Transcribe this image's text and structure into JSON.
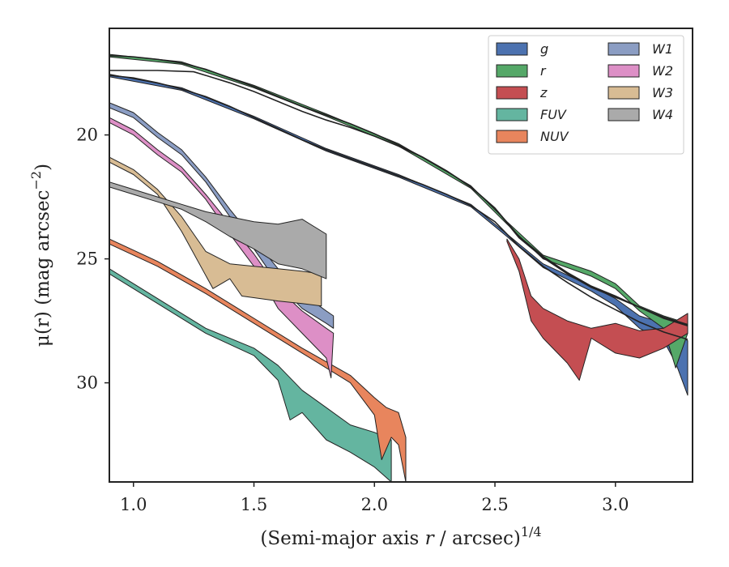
{
  "chart_data": {
    "type": "area",
    "xlabel": "(Semi-major axis r / arcsec)",
    "xlabel_italic_part": "r",
    "xlabel_superscript": "1/4",
    "ylabel": "μ(r) (mag arcsec",
    "ylabel_superscript": "−2",
    "ylabel_close": ")",
    "xlim": [
      0.9,
      3.32
    ],
    "ylim": [
      34.0,
      15.7
    ],
    "y_inverted": true,
    "xticks": [
      1.0,
      1.5,
      2.0,
      2.5,
      3.0
    ],
    "xtick_labels": [
      "1.0",
      "1.5",
      "2.0",
      "2.5",
      "3.0"
    ],
    "yticks": [
      20,
      25,
      30
    ],
    "ytick_labels": [
      "20",
      "25",
      "30"
    ],
    "legend_position": "top-right",
    "legend_columns": 2,
    "model_curves": [
      {
        "points": [
          [
            0.9,
            16.8
          ],
          [
            1.0,
            16.85
          ],
          [
            1.1,
            16.95
          ],
          [
            1.2,
            17.1
          ],
          [
            1.3,
            17.35
          ],
          [
            1.4,
            17.7
          ],
          [
            1.5,
            18.05
          ],
          [
            1.6,
            18.45
          ],
          [
            1.7,
            18.85
          ],
          [
            1.8,
            19.2
          ],
          [
            1.9,
            19.55
          ],
          [
            2.0,
            19.95
          ],
          [
            2.1,
            20.4
          ],
          [
            2.2,
            20.9
          ],
          [
            2.3,
            21.45
          ],
          [
            2.4,
            22.1
          ],
          [
            2.5,
            22.95
          ],
          [
            2.6,
            24.1
          ],
          [
            2.7,
            24.9
          ],
          [
            2.8,
            25.55
          ],
          [
            2.9,
            26.1
          ],
          [
            3.0,
            26.5
          ],
          [
            3.1,
            26.95
          ],
          [
            3.2,
            27.4
          ],
          [
            3.3,
            27.7
          ]
        ]
      },
      {
        "points": [
          [
            0.9,
            17.4
          ],
          [
            1.1,
            17.4
          ],
          [
            1.25,
            17.45
          ],
          [
            1.3,
            17.6
          ],
          [
            1.4,
            17.9
          ],
          [
            1.5,
            18.25
          ],
          [
            1.6,
            18.65
          ],
          [
            1.7,
            19.05
          ],
          [
            1.8,
            19.4
          ],
          [
            1.9,
            19.7
          ],
          [
            2.0,
            20.05
          ],
          [
            2.1,
            20.45
          ],
          [
            2.2,
            20.9
          ],
          [
            2.3,
            21.45
          ],
          [
            2.4,
            22.1
          ],
          [
            2.5,
            22.95
          ],
          [
            2.6,
            24.15
          ],
          [
            2.7,
            24.95
          ],
          [
            2.8,
            25.6
          ],
          [
            2.9,
            26.15
          ],
          [
            3.0,
            26.55
          ],
          [
            3.1,
            26.95
          ],
          [
            3.2,
            27.35
          ],
          [
            3.3,
            27.65
          ]
        ]
      },
      {
        "points": [
          [
            0.9,
            17.6
          ],
          [
            1.0,
            17.7
          ],
          [
            1.1,
            17.9
          ],
          [
            1.2,
            18.15
          ],
          [
            1.3,
            18.45
          ],
          [
            1.4,
            18.85
          ],
          [
            1.5,
            19.3
          ],
          [
            1.6,
            19.75
          ],
          [
            1.7,
            20.2
          ],
          [
            1.8,
            20.6
          ],
          [
            1.9,
            20.95
          ],
          [
            2.0,
            21.3
          ],
          [
            2.1,
            21.65
          ],
          [
            2.2,
            22.0
          ],
          [
            2.3,
            22.4
          ],
          [
            2.4,
            22.85
          ],
          [
            2.5,
            23.5
          ],
          [
            2.6,
            24.5
          ],
          [
            2.7,
            25.3
          ],
          [
            2.8,
            25.95
          ],
          [
            2.9,
            26.55
          ],
          [
            3.0,
            27.05
          ],
          [
            3.1,
            27.55
          ],
          [
            3.2,
            27.95
          ],
          [
            3.3,
            28.25
          ]
        ]
      }
    ],
    "series": [
      {
        "name": "g",
        "color": "#4c72b0",
        "upper": [
          [
            0.9,
            17.55
          ],
          [
            1.2,
            18.1
          ],
          [
            1.5,
            19.25
          ],
          [
            1.8,
            20.55
          ],
          [
            2.1,
            21.6
          ],
          [
            2.4,
            22.8
          ],
          [
            2.55,
            24.0
          ],
          [
            2.7,
            25.2
          ],
          [
            2.9,
            26.1
          ],
          [
            3.0,
            26.6
          ],
          [
            3.1,
            27.3
          ],
          [
            3.2,
            27.6
          ],
          [
            3.25,
            28.0
          ],
          [
            3.3,
            28.3
          ]
        ],
        "lower": [
          [
            0.9,
            17.65
          ],
          [
            1.2,
            18.2
          ],
          [
            1.5,
            19.35
          ],
          [
            1.8,
            20.65
          ],
          [
            2.1,
            21.7
          ],
          [
            2.4,
            22.9
          ],
          [
            2.55,
            24.1
          ],
          [
            2.7,
            25.35
          ],
          [
            2.9,
            26.3
          ],
          [
            3.0,
            26.9
          ],
          [
            3.1,
            27.8
          ],
          [
            3.2,
            28.3
          ],
          [
            3.25,
            29.2
          ],
          [
            3.3,
            30.5
          ]
        ]
      },
      {
        "name": "r",
        "color": "#55a868",
        "upper": [
          [
            0.9,
            16.75
          ],
          [
            1.2,
            17.05
          ],
          [
            1.5,
            18.0
          ],
          [
            1.8,
            19.15
          ],
          [
            2.1,
            20.35
          ],
          [
            2.4,
            22.05
          ],
          [
            2.55,
            23.5
          ],
          [
            2.7,
            24.85
          ],
          [
            2.9,
            25.5
          ],
          [
            3.0,
            26.0
          ],
          [
            3.1,
            26.9
          ],
          [
            3.2,
            27.3
          ],
          [
            3.3,
            27.6
          ]
        ],
        "lower": [
          [
            0.9,
            16.85
          ],
          [
            1.2,
            17.15
          ],
          [
            1.5,
            18.1
          ],
          [
            1.8,
            19.25
          ],
          [
            2.1,
            20.45
          ],
          [
            2.4,
            22.15
          ],
          [
            2.55,
            23.6
          ],
          [
            2.7,
            25.0
          ],
          [
            2.9,
            25.7
          ],
          [
            3.0,
            26.2
          ],
          [
            3.1,
            27.1
          ],
          [
            3.2,
            27.8
          ],
          [
            3.25,
            29.4
          ],
          [
            3.3,
            28.0
          ]
        ]
      },
      {
        "name": "z",
        "color": "#c44e52",
        "upper": [
          [
            2.55,
            24.2
          ],
          [
            2.6,
            25.0
          ],
          [
            2.65,
            26.5
          ],
          [
            2.7,
            27.0
          ],
          [
            2.8,
            27.5
          ],
          [
            2.9,
            27.8
          ],
          [
            3.0,
            27.6
          ],
          [
            3.1,
            27.9
          ],
          [
            3.2,
            27.8
          ],
          [
            3.3,
            27.2
          ]
        ],
        "lower": [
          [
            2.55,
            24.3
          ],
          [
            2.6,
            25.5
          ],
          [
            2.65,
            27.5
          ],
          [
            2.7,
            28.2
          ],
          [
            2.8,
            29.2
          ],
          [
            2.85,
            29.9
          ],
          [
            2.9,
            28.2
          ],
          [
            3.0,
            28.8
          ],
          [
            3.1,
            29.0
          ],
          [
            3.2,
            28.6
          ],
          [
            3.3,
            28.0
          ]
        ]
      },
      {
        "name": "FUV",
        "color": "#64b5a0",
        "upper": [
          [
            0.9,
            25.4
          ],
          [
            1.1,
            26.6
          ],
          [
            1.3,
            27.8
          ],
          [
            1.5,
            28.6
          ],
          [
            1.6,
            29.3
          ],
          [
            1.7,
            30.3
          ],
          [
            1.8,
            31.0
          ],
          [
            1.9,
            31.7
          ],
          [
            2.0,
            32.0
          ],
          [
            2.07,
            32.3
          ]
        ],
        "lower": [
          [
            0.9,
            25.6
          ],
          [
            1.1,
            26.8
          ],
          [
            1.3,
            28.0
          ],
          [
            1.5,
            28.9
          ],
          [
            1.6,
            29.9
          ],
          [
            1.65,
            31.5
          ],
          [
            1.7,
            31.2
          ],
          [
            1.8,
            32.3
          ],
          [
            1.9,
            32.8
          ],
          [
            2.0,
            33.4
          ],
          [
            2.07,
            34.0
          ]
        ]
      },
      {
        "name": "NUV",
        "color": "#e8855d",
        "upper": [
          [
            0.9,
            24.2
          ],
          [
            1.1,
            25.1
          ],
          [
            1.3,
            26.2
          ],
          [
            1.5,
            27.4
          ],
          [
            1.7,
            28.6
          ],
          [
            1.9,
            29.7
          ],
          [
            2.0,
            30.6
          ],
          [
            2.05,
            31.0
          ],
          [
            2.1,
            31.2
          ],
          [
            2.13,
            32.2
          ]
        ],
        "lower": [
          [
            0.9,
            24.4
          ],
          [
            1.1,
            25.3
          ],
          [
            1.3,
            26.4
          ],
          [
            1.5,
            27.6
          ],
          [
            1.7,
            28.8
          ],
          [
            1.9,
            30.0
          ],
          [
            2.0,
            31.3
          ],
          [
            2.03,
            33.1
          ],
          [
            2.07,
            32.2
          ],
          [
            2.1,
            32.5
          ],
          [
            2.13,
            34.0
          ]
        ]
      },
      {
        "name": "W1",
        "color": "#8b9dc3",
        "upper": [
          [
            0.9,
            18.7
          ],
          [
            1.0,
            19.1
          ],
          [
            1.1,
            19.9
          ],
          [
            1.2,
            20.6
          ],
          [
            1.3,
            21.7
          ],
          [
            1.4,
            23.0
          ],
          [
            1.5,
            24.2
          ],
          [
            1.6,
            25.4
          ],
          [
            1.7,
            26.4
          ],
          [
            1.8,
            27.1
          ],
          [
            1.83,
            27.3
          ]
        ],
        "lower": [
          [
            0.9,
            18.9
          ],
          [
            1.0,
            19.3
          ],
          [
            1.1,
            20.1
          ],
          [
            1.2,
            20.8
          ],
          [
            1.3,
            21.9
          ],
          [
            1.4,
            23.3
          ],
          [
            1.5,
            24.6
          ],
          [
            1.6,
            26.0
          ],
          [
            1.7,
            27.0
          ],
          [
            1.8,
            27.6
          ],
          [
            1.83,
            27.8
          ]
        ]
      },
      {
        "name": "W2",
        "color": "#dd8fc6",
        "upper": [
          [
            0.9,
            19.3
          ],
          [
            1.0,
            19.8
          ],
          [
            1.1,
            20.6
          ],
          [
            1.2,
            21.3
          ],
          [
            1.3,
            22.4
          ],
          [
            1.4,
            23.6
          ],
          [
            1.5,
            24.8
          ],
          [
            1.6,
            26.2
          ],
          [
            1.7,
            27.1
          ],
          [
            1.8,
            27.8
          ],
          [
            1.83,
            28.0
          ]
        ],
        "lower": [
          [
            0.9,
            19.5
          ],
          [
            1.0,
            20.0
          ],
          [
            1.1,
            20.8
          ],
          [
            1.2,
            21.5
          ],
          [
            1.3,
            22.6
          ],
          [
            1.4,
            24.0
          ],
          [
            1.5,
            25.3
          ],
          [
            1.6,
            27.0
          ],
          [
            1.7,
            28.0
          ],
          [
            1.8,
            29.0
          ],
          [
            1.82,
            29.8
          ]
        ]
      },
      {
        "name": "W3",
        "color": "#d8bc94",
        "upper": [
          [
            0.9,
            20.9
          ],
          [
            1.0,
            21.4
          ],
          [
            1.1,
            22.2
          ],
          [
            1.2,
            23.3
          ],
          [
            1.3,
            24.7
          ],
          [
            1.4,
            25.2
          ],
          [
            1.5,
            25.3
          ],
          [
            1.6,
            25.4
          ],
          [
            1.7,
            25.5
          ],
          [
            1.78,
            25.6
          ]
        ],
        "lower": [
          [
            0.9,
            21.1
          ],
          [
            1.0,
            21.6
          ],
          [
            1.1,
            22.4
          ],
          [
            1.2,
            23.9
          ],
          [
            1.33,
            26.2
          ],
          [
            1.4,
            25.8
          ],
          [
            1.45,
            26.5
          ],
          [
            1.6,
            26.7
          ],
          [
            1.7,
            26.8
          ],
          [
            1.78,
            26.9
          ]
        ]
      },
      {
        "name": "W4",
        "color": "#aaaaaa",
        "upper": [
          [
            0.9,
            21.9
          ],
          [
            1.0,
            22.2
          ],
          [
            1.1,
            22.5
          ],
          [
            1.2,
            22.8
          ],
          [
            1.3,
            23.1
          ],
          [
            1.4,
            23.3
          ],
          [
            1.5,
            23.5
          ],
          [
            1.6,
            23.6
          ],
          [
            1.7,
            23.4
          ],
          [
            1.8,
            24.0
          ]
        ],
        "lower": [
          [
            0.9,
            22.1
          ],
          [
            1.0,
            22.4
          ],
          [
            1.1,
            22.7
          ],
          [
            1.2,
            23.0
          ],
          [
            1.3,
            23.5
          ],
          [
            1.4,
            24.1
          ],
          [
            1.5,
            24.6
          ],
          [
            1.6,
            25.2
          ],
          [
            1.7,
            25.4
          ],
          [
            1.8,
            25.8
          ]
        ]
      }
    ]
  }
}
